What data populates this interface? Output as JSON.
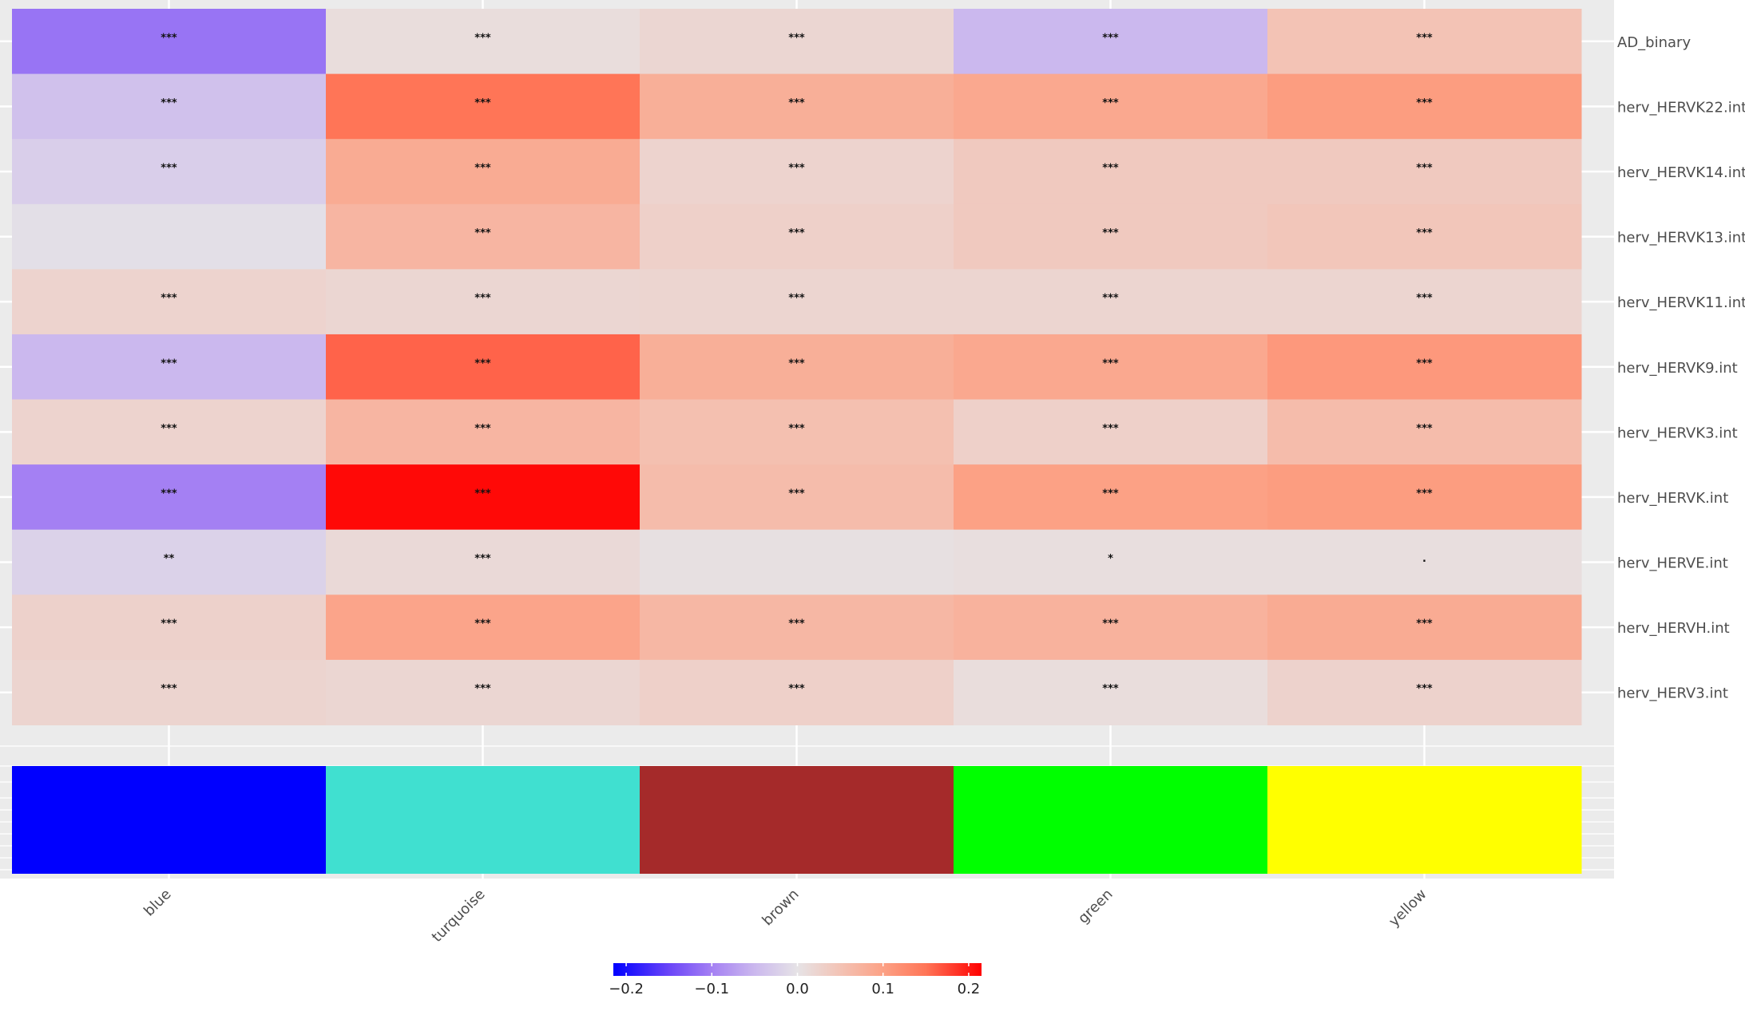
{
  "chart_data": {
    "type": "heatmap",
    "columns": [
      "blue",
      "turquoise",
      "brown",
      "green",
      "yellow"
    ],
    "rows": [
      "AD_binary",
      "herv_HERVK22.int",
      "herv_HERVK14.int",
      "herv_HERVK13.int",
      "herv_HERVK11.int",
      "herv_HERVK9.int",
      "herv_HERVK3.int",
      "herv_HERVK.int",
      "herv_HERVE.int",
      "herv_HERVH.int",
      "herv_HERV3.int"
    ],
    "values": [
      [
        -0.11,
        0.01,
        0.02,
        -0.05,
        0.05
      ],
      [
        -0.04,
        0.15,
        0.08,
        0.09,
        0.105
      ],
      [
        -0.025,
        0.085,
        0.025,
        0.04,
        0.04
      ],
      [
        -0.005,
        0.07,
        0.03,
        0.04,
        0.045
      ],
      [
        0.025,
        0.02,
        0.022,
        0.022,
        0.022
      ],
      [
        -0.05,
        0.16,
        0.08,
        0.09,
        0.11
      ],
      [
        0.025,
        0.07,
        0.055,
        0.03,
        0.06
      ],
      [
        -0.1,
        0.21,
        0.06,
        0.1,
        0.105
      ],
      [
        -0.02,
        0.015,
        0.005,
        0.008,
        0.008
      ],
      [
        0.028,
        0.095,
        0.068,
        0.075,
        0.085
      ],
      [
        0.023,
        0.02,
        0.03,
        0.01,
        0.027
      ]
    ],
    "stars": [
      [
        "***",
        "***",
        "***",
        "***",
        "***"
      ],
      [
        "***",
        "***",
        "***",
        "***",
        "***"
      ],
      [
        "***",
        "***",
        "***",
        "***",
        "***"
      ],
      [
        null,
        "***",
        "***",
        "***",
        "***"
      ],
      [
        "***",
        "***",
        "***",
        "***",
        "***"
      ],
      [
        "***",
        "***",
        "***",
        "***",
        "***"
      ],
      [
        "***",
        "***",
        "***",
        "***",
        "***"
      ],
      [
        "***",
        "***",
        "***",
        "***",
        "***"
      ],
      [
        "**",
        "***",
        null,
        "*",
        "."
      ],
      [
        "***",
        "***",
        "***",
        "***",
        "***"
      ],
      [
        "***",
        "***",
        "***",
        "***",
        "***"
      ]
    ],
    "strip_colors": [
      "#0000ff",
      "#40e0d0",
      "#a52a2a",
      "#00ff00",
      "#ffff00"
    ],
    "clim": [
      -0.215,
      0.215
    ],
    "cticks": [
      {
        "value": -0.2,
        "label": "−0.2"
      },
      {
        "value": -0.1,
        "label": "−0.1"
      },
      {
        "value": 0,
        "label": "0.0"
      },
      0.1,
      0.2
    ],
    "colorscale": [
      [
        -0.215,
        "#0000ff"
      ],
      [
        -0.15,
        "#6a45f8"
      ],
      [
        -0.1,
        "#a480f3"
      ],
      [
        -0.05,
        "#cbb8ee"
      ],
      [
        0,
        "#e6e3e6"
      ],
      [
        0.05,
        "#f3c3b5"
      ],
      [
        0.1,
        "#fca185"
      ],
      [
        0.15,
        "#ff7557"
      ],
      [
        0.215,
        "#ff0000"
      ]
    ]
  }
}
